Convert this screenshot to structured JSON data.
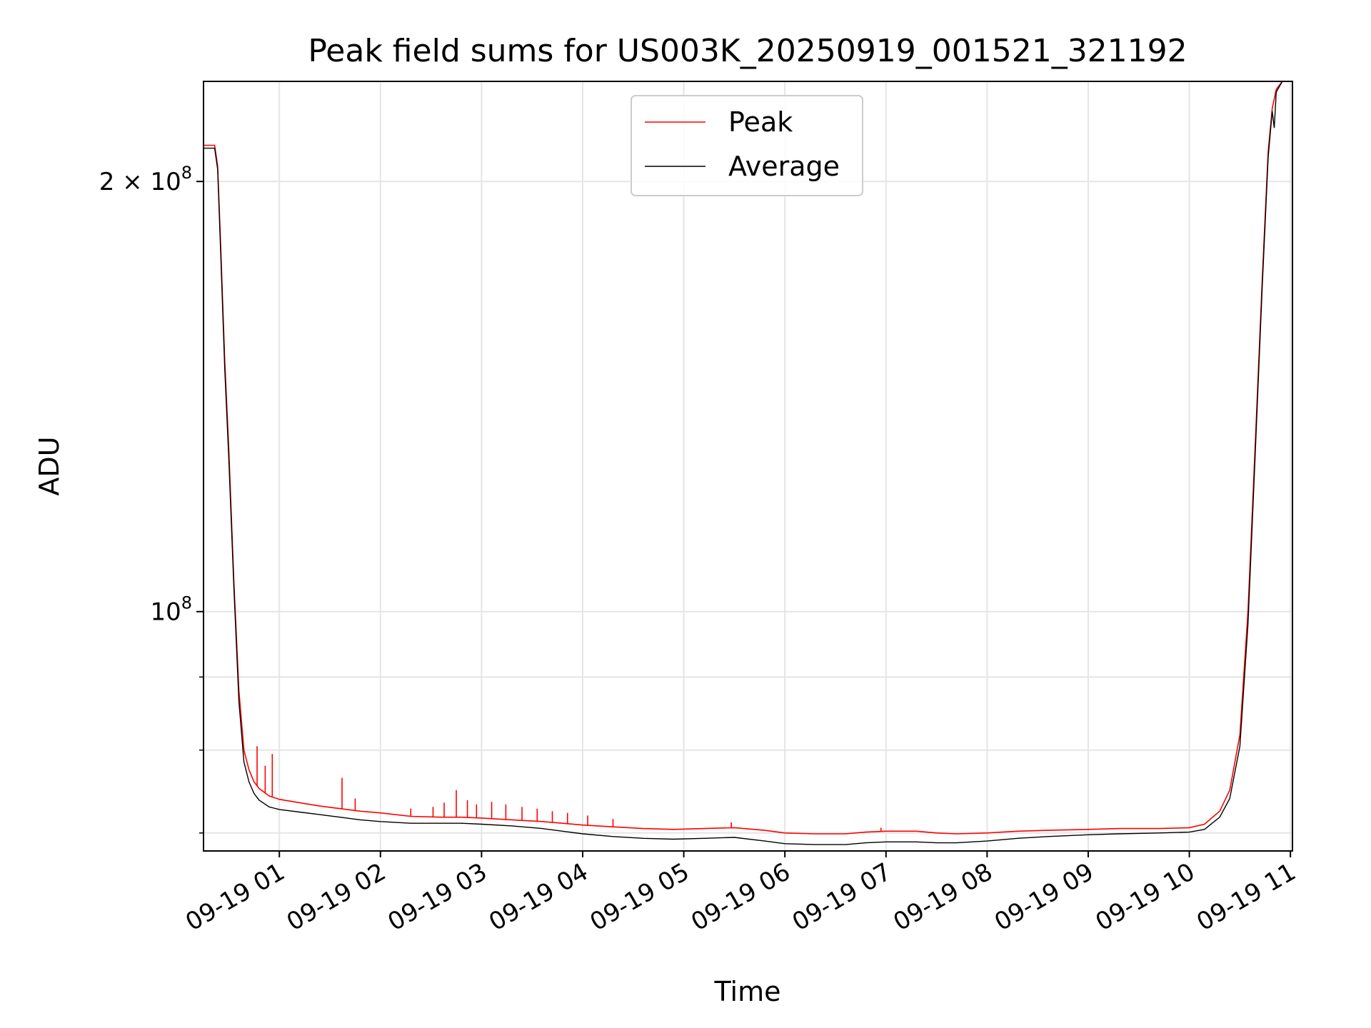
{
  "chart_data": {
    "type": "line",
    "title": "Peak field sums for US003K_20250919_001521_321192",
    "xlabel": "Time",
    "ylabel": "ADU",
    "yscale": "log",
    "grid": true,
    "legend_position": "top-center",
    "x_range_hours": [
      0.25,
      11.02
    ],
    "ylim": [
      68000000,
      235000000
    ],
    "x_ticks": [
      {
        "hour": 1,
        "label": "09-19 01"
      },
      {
        "hour": 2,
        "label": "09-19 02"
      },
      {
        "hour": 3,
        "label": "09-19 03"
      },
      {
        "hour": 4,
        "label": "09-19 04"
      },
      {
        "hour": 5,
        "label": "09-19 05"
      },
      {
        "hour": 6,
        "label": "09-19 06"
      },
      {
        "hour": 7,
        "label": "09-19 07"
      },
      {
        "hour": 8,
        "label": "09-19 08"
      },
      {
        "hour": 9,
        "label": "09-19 09"
      },
      {
        "hour": 10,
        "label": "09-19 10"
      },
      {
        "hour": 11,
        "label": "09-19 11"
      }
    ],
    "y_ticks_major": [
      {
        "value": 100000000,
        "base": "10",
        "exp": "8",
        "mantissa": ""
      },
      {
        "value": 200000000,
        "base": "10",
        "exp": "8",
        "mantissa": "2"
      }
    ],
    "y_ticks_minor": [
      70000000,
      80000000,
      90000000
    ],
    "series": [
      {
        "name": "Peak",
        "color": "#ff0000",
        "points": [
          [
            0.25,
            212000000
          ],
          [
            0.3,
            212000000
          ],
          [
            0.36,
            212000000
          ],
          [
            0.39,
            205000000
          ],
          [
            0.42,
            180000000
          ],
          [
            0.46,
            150000000
          ],
          [
            0.5,
            130000000
          ],
          [
            0.55,
            105000000
          ],
          [
            0.6,
            88000000
          ],
          [
            0.65,
            80000000
          ],
          [
            0.7,
            77500000
          ],
          [
            0.75,
            76000000
          ],
          [
            0.8,
            75200000
          ],
          [
            0.9,
            74300000
          ],
          [
            1.0,
            73900000
          ],
          [
            1.2,
            73500000
          ],
          [
            1.4,
            73100000
          ],
          [
            1.6,
            72800000
          ],
          [
            1.8,
            72500000
          ],
          [
            2.0,
            72300000
          ],
          [
            2.3,
            71900000
          ],
          [
            2.6,
            71800000
          ],
          [
            2.8,
            71800000
          ],
          [
            3.0,
            71700000
          ],
          [
            3.3,
            71500000
          ],
          [
            3.6,
            71300000
          ],
          [
            3.8,
            71100000
          ],
          [
            4.0,
            70900000
          ],
          [
            4.3,
            70700000
          ],
          [
            4.6,
            70500000
          ],
          [
            4.9,
            70400000
          ],
          [
            5.2,
            70500000
          ],
          [
            5.5,
            70600000
          ],
          [
            5.8,
            70300000
          ],
          [
            6.0,
            70000000
          ],
          [
            6.3,
            69900000
          ],
          [
            6.6,
            69900000
          ],
          [
            6.8,
            70100000
          ],
          [
            7.0,
            70200000
          ],
          [
            7.3,
            70200000
          ],
          [
            7.5,
            70000000
          ],
          [
            7.7,
            69900000
          ],
          [
            8.0,
            70000000
          ],
          [
            8.3,
            70200000
          ],
          [
            8.6,
            70300000
          ],
          [
            9.0,
            70400000
          ],
          [
            9.3,
            70500000
          ],
          [
            9.7,
            70500000
          ],
          [
            10.0,
            70600000
          ],
          [
            10.15,
            71000000
          ],
          [
            10.3,
            72500000
          ],
          [
            10.4,
            75000000
          ],
          [
            10.5,
            82000000
          ],
          [
            10.58,
            100000000
          ],
          [
            10.65,
            130000000
          ],
          [
            10.72,
            170000000
          ],
          [
            10.78,
            210000000
          ],
          [
            10.82,
            225000000
          ],
          [
            10.86,
            232000000
          ],
          [
            10.92,
            235000000
          ],
          [
            11.02,
            235000000
          ]
        ],
        "spikes": [
          [
            0.78,
            80500000
          ],
          [
            0.86,
            78000000
          ],
          [
            0.93,
            79500000
          ],
          [
            1.62,
            76500000
          ],
          [
            1.75,
            74000000
          ],
          [
            2.3,
            72800000
          ],
          [
            2.52,
            73000000
          ],
          [
            2.63,
            73500000
          ],
          [
            2.75,
            75000000
          ],
          [
            2.86,
            73800000
          ],
          [
            2.95,
            73300000
          ],
          [
            3.1,
            73600000
          ],
          [
            3.24,
            73300000
          ],
          [
            3.4,
            73000000
          ],
          [
            3.55,
            72800000
          ],
          [
            3.7,
            72500000
          ],
          [
            3.85,
            72300000
          ],
          [
            4.05,
            72000000
          ],
          [
            4.3,
            71600000
          ],
          [
            5.47,
            71200000
          ],
          [
            6.95,
            70600000
          ]
        ]
      },
      {
        "name": "Average",
        "color": "#000000",
        "points": [
          [
            0.25,
            211000000
          ],
          [
            0.3,
            211000000
          ],
          [
            0.36,
            211000000
          ],
          [
            0.39,
            204000000
          ],
          [
            0.42,
            178000000
          ],
          [
            0.46,
            148000000
          ],
          [
            0.5,
            128000000
          ],
          [
            0.55,
            104000000
          ],
          [
            0.6,
            86500000
          ],
          [
            0.65,
            78500000
          ],
          [
            0.7,
            76000000
          ],
          [
            0.75,
            74600000
          ],
          [
            0.8,
            73800000
          ],
          [
            0.9,
            73000000
          ],
          [
            1.0,
            72700000
          ],
          [
            1.2,
            72400000
          ],
          [
            1.4,
            72100000
          ],
          [
            1.6,
            71800000
          ],
          [
            1.8,
            71500000
          ],
          [
            2.0,
            71300000
          ],
          [
            2.3,
            71100000
          ],
          [
            2.6,
            71100000
          ],
          [
            2.8,
            71100000
          ],
          [
            3.0,
            71000000
          ],
          [
            3.3,
            70800000
          ],
          [
            3.6,
            70500000
          ],
          [
            3.8,
            70200000
          ],
          [
            4.0,
            69900000
          ],
          [
            4.3,
            69600000
          ],
          [
            4.6,
            69400000
          ],
          [
            4.9,
            69300000
          ],
          [
            5.2,
            69400000
          ],
          [
            5.5,
            69500000
          ],
          [
            5.8,
            69100000
          ],
          [
            6.0,
            68800000
          ],
          [
            6.3,
            68700000
          ],
          [
            6.6,
            68700000
          ],
          [
            6.8,
            68900000
          ],
          [
            7.0,
            69000000
          ],
          [
            7.3,
            69000000
          ],
          [
            7.5,
            68900000
          ],
          [
            7.7,
            68900000
          ],
          [
            8.0,
            69100000
          ],
          [
            8.3,
            69400000
          ],
          [
            8.6,
            69600000
          ],
          [
            9.0,
            69800000
          ],
          [
            9.3,
            69900000
          ],
          [
            9.7,
            70000000
          ],
          [
            10.0,
            70100000
          ],
          [
            10.15,
            70400000
          ],
          [
            10.3,
            71800000
          ],
          [
            10.4,
            74000000
          ],
          [
            10.5,
            80500000
          ],
          [
            10.58,
            98000000
          ],
          [
            10.65,
            128000000
          ],
          [
            10.72,
            168000000
          ],
          [
            10.78,
            208000000
          ],
          [
            10.82,
            224000000
          ],
          [
            10.84,
            218000000
          ],
          [
            10.86,
            231000000
          ],
          [
            10.92,
            235000000
          ],
          [
            11.02,
            235000000
          ]
        ]
      }
    ]
  }
}
